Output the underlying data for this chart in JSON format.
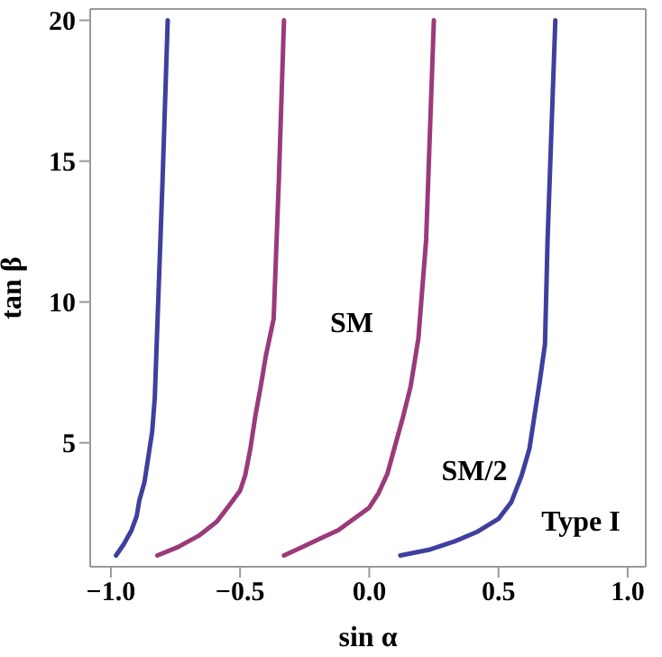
{
  "chart_data": {
    "type": "line",
    "xlabel": "sin α",
    "ylabel": "tan β",
    "xlim": [
      -1.08,
      1.07
    ],
    "xticks": [
      {
        "value": -1,
        "label": "−1.0"
      },
      {
        "value": -0.5,
        "label": "−0.5"
      },
      {
        "value": 0,
        "label": "0.0"
      },
      {
        "value": 0.5,
        "label": "0.5"
      },
      {
        "value": 1,
        "label": "1.0"
      }
    ],
    "ylim": [
      0.6,
      20.4
    ],
    "yticks": [
      5,
      10,
      15,
      20
    ],
    "marker": "none",
    "line_style": "solid",
    "series": [
      {
        "color": "#3f3f9f",
        "x": [
          -0.98,
          -0.95,
          -0.92,
          -0.9,
          -0.89,
          -0.87,
          -0.86,
          -0.84,
          -0.83,
          -0.82,
          -0.8,
          -0.78
        ],
        "values": [
          1.0,
          1.4,
          1.9,
          2.4,
          2.95,
          3.6,
          4.2,
          5.4,
          6.6,
          9.2,
          14.3,
          20
        ]
      },
      {
        "color": "#9b3a7a",
        "x": [
          -0.82,
          -0.74,
          -0.66,
          -0.59,
          -0.54,
          -0.5,
          -0.48,
          -0.46,
          -0.44,
          -0.42,
          -0.4,
          -0.37,
          -0.35,
          -0.33
        ],
        "values": [
          1.0,
          1.3,
          1.7,
          2.2,
          2.8,
          3.3,
          3.85,
          4.8,
          6.0,
          7.0,
          8.1,
          9.4,
          14.3,
          20
        ]
      },
      {
        "color": "#9b3a7a",
        "x": [
          -0.33,
          -0.26,
          -0.19,
          -0.12,
          -0.06,
          0.0,
          0.035,
          0.07,
          0.1,
          0.13,
          0.16,
          0.19,
          0.22,
          0.25
        ],
        "values": [
          1.0,
          1.3,
          1.6,
          1.9,
          2.3,
          2.7,
          3.2,
          3.9,
          4.9,
          5.9,
          7.0,
          8.7,
          12.2,
          20
        ]
      },
      {
        "color": "#3f3f9f",
        "x": [
          0.12,
          0.23,
          0.33,
          0.42,
          0.5,
          0.55,
          0.59,
          0.62,
          0.64,
          0.66,
          0.68,
          0.69,
          0.72
        ],
        "values": [
          1.0,
          1.2,
          1.5,
          1.85,
          2.3,
          2.9,
          3.85,
          4.8,
          6.0,
          7.2,
          8.5,
          12.2,
          20
        ]
      }
    ],
    "annotations": [
      "SM",
      "SM/2",
      "Type I"
    ]
  }
}
